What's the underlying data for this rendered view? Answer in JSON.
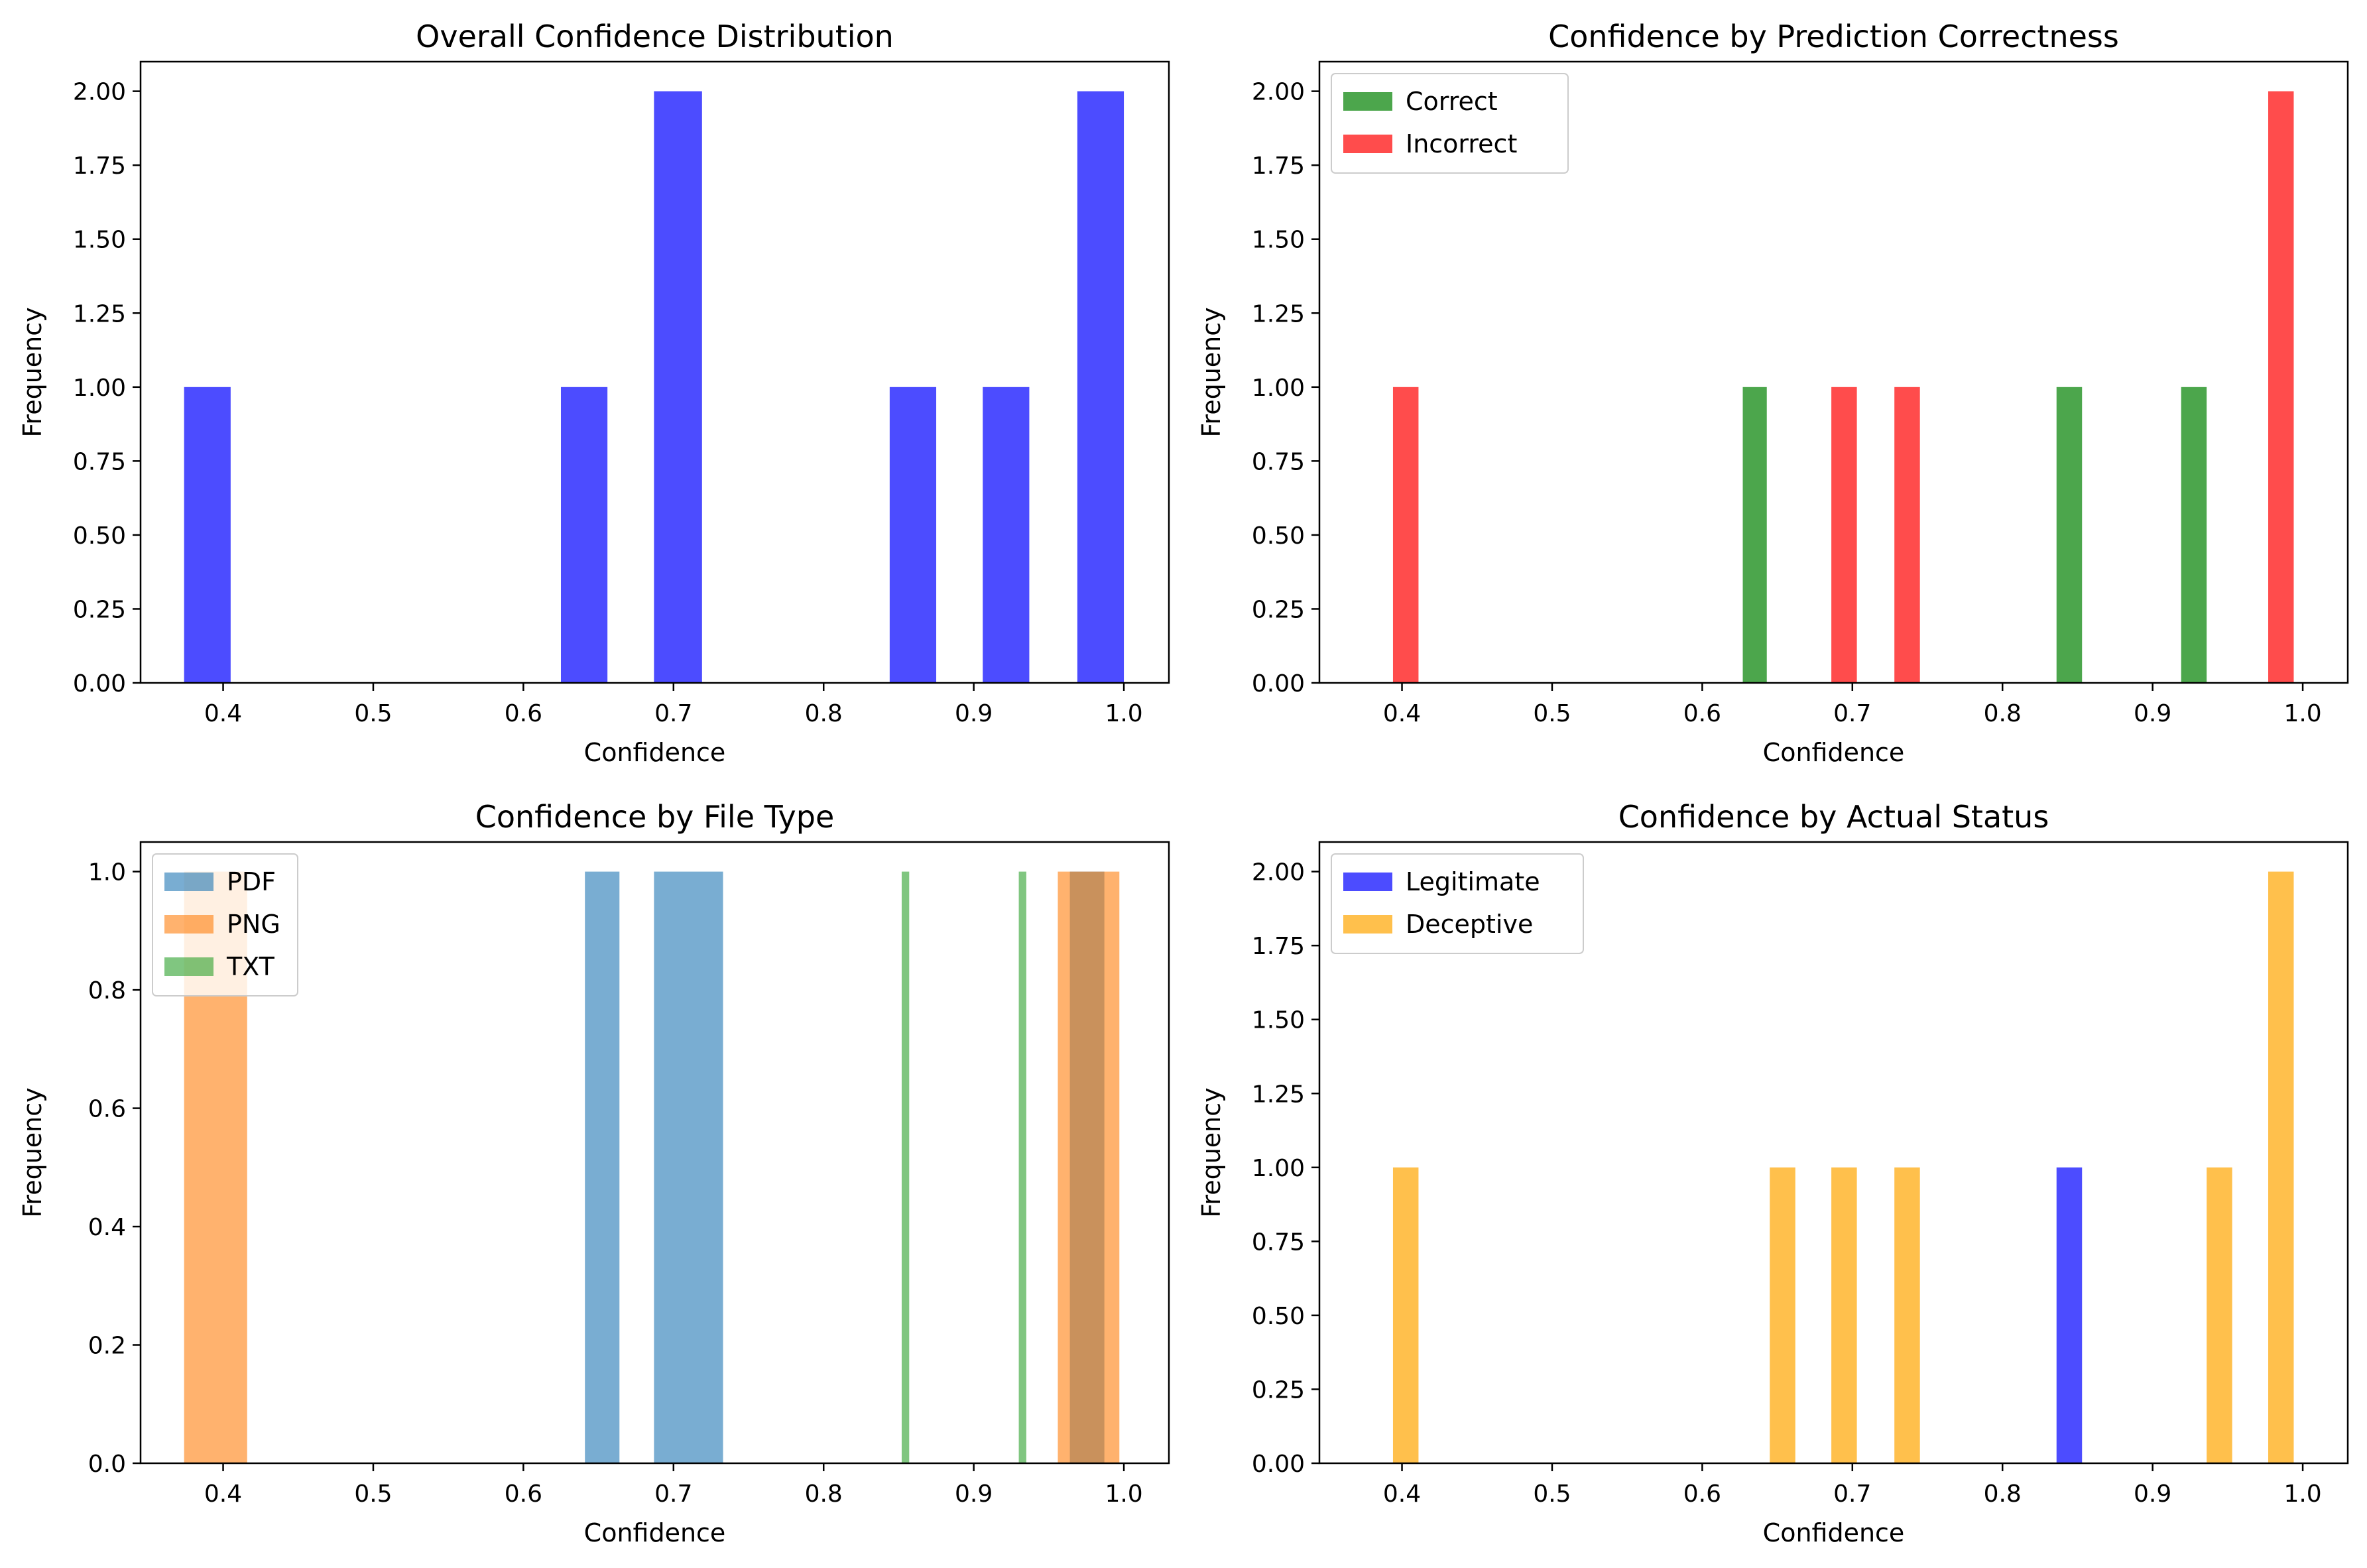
{
  "charts": [
    {
      "title": "Overall Confidence Distribution",
      "xlabel": "Confidence",
      "ylabel": "Frequency",
      "xlim": [
        0.345,
        1.03
      ],
      "ylim": [
        0,
        2.1
      ],
      "xticks": [
        "0.4",
        "0.5",
        "0.6",
        "0.7",
        "0.8",
        "0.9",
        "1.0"
      ],
      "yticks": [
        "0.00",
        "0.25",
        "0.50",
        "0.75",
        "1.00",
        "1.25",
        "1.50",
        "1.75",
        "2.00"
      ],
      "legend": null,
      "series": [
        {
          "name": "",
          "color": "#0000ff",
          "opacity": 0.7,
          "bins": [
            [
              0.374,
              0.405,
              1
            ],
            [
              0.625,
              0.656,
              1
            ],
            [
              0.687,
              0.719,
              2
            ],
            [
              0.844,
              0.875,
              1
            ],
            [
              0.906,
              0.937,
              1
            ],
            [
              0.969,
              1.0,
              2
            ]
          ]
        }
      ]
    },
    {
      "title": "Confidence by Prediction Correctness",
      "xlabel": "Confidence",
      "ylabel": "Frequency",
      "xlim": [
        0.345,
        1.03
      ],
      "ylim": [
        0,
        2.1
      ],
      "xticks": [
        "0.4",
        "0.5",
        "0.6",
        "0.7",
        "0.8",
        "0.9",
        "1.0"
      ],
      "yticks": [
        "0.00",
        "0.25",
        "0.50",
        "0.75",
        "1.00",
        "1.25",
        "1.50",
        "1.75",
        "2.00"
      ],
      "legend": "upper-left",
      "series": [
        {
          "name": "Correct",
          "color": "#008000",
          "opacity": 0.7,
          "bins": [
            [
              0.627,
              0.643,
              1
            ],
            [
              0.836,
              0.853,
              1
            ],
            [
              0.919,
              0.936,
              1
            ]
          ]
        },
        {
          "name": "Incorrect",
          "color": "#ff0000",
          "opacity": 0.7,
          "bins": [
            [
              0.394,
              0.411,
              1
            ],
            [
              0.686,
              0.703,
              1
            ],
            [
              0.728,
              0.745,
              1
            ],
            [
              0.977,
              0.994,
              2
            ]
          ]
        }
      ]
    },
    {
      "title": "Confidence by File Type",
      "xlabel": "Confidence",
      "ylabel": "Frequency",
      "xlim": [
        0.345,
        1.03
      ],
      "ylim": [
        0,
        1.05
      ],
      "xticks": [
        "0.4",
        "0.5",
        "0.6",
        "0.7",
        "0.8",
        "0.9",
        "1.0"
      ],
      "yticks": [
        "0.0",
        "0.2",
        "0.4",
        "0.6",
        "0.8",
        "1.0"
      ],
      "legend": "upper-left",
      "series": [
        {
          "name": "PDF",
          "color": "#1f77b4",
          "opacity": 0.6,
          "bins": [
            [
              0.641,
              0.664,
              1
            ],
            [
              0.687,
              0.733,
              1
            ],
            [
              0.964,
              0.987,
              1
            ]
          ]
        },
        {
          "name": "PNG",
          "color": "#ff7f0e",
          "opacity": 0.6,
          "bins": [
            [
              0.374,
              0.416,
              1
            ],
            [
              0.956,
              0.997,
              1
            ]
          ]
        },
        {
          "name": "TXT",
          "color": "#2ca02c",
          "opacity": 0.6,
          "bins": [
            [
              0.852,
              0.857,
              1
            ],
            [
              0.93,
              0.935,
              1
            ]
          ]
        }
      ]
    },
    {
      "title": "Confidence by Actual Status",
      "xlabel": "Confidence",
      "ylabel": "Frequency",
      "xlim": [
        0.345,
        1.03
      ],
      "ylim": [
        0,
        2.1
      ],
      "xticks": [
        "0.4",
        "0.5",
        "0.6",
        "0.7",
        "0.8",
        "0.9",
        "1.0"
      ],
      "yticks": [
        "0.00",
        "0.25",
        "0.50",
        "0.75",
        "1.00",
        "1.25",
        "1.50",
        "1.75",
        "2.00"
      ],
      "legend": "upper-left",
      "series": [
        {
          "name": "Legitimate",
          "color": "#0000ff",
          "opacity": 0.7,
          "bins": [
            [
              0.836,
              0.853,
              1
            ]
          ]
        },
        {
          "name": "Deceptive",
          "color": "#ffa500",
          "opacity": 0.7,
          "bins": [
            [
              0.394,
              0.411,
              1
            ],
            [
              0.645,
              0.662,
              1
            ],
            [
              0.686,
              0.703,
              1
            ],
            [
              0.728,
              0.745,
              1
            ],
            [
              0.936,
              0.953,
              1
            ],
            [
              0.977,
              0.994,
              2
            ]
          ]
        }
      ]
    }
  ]
}
